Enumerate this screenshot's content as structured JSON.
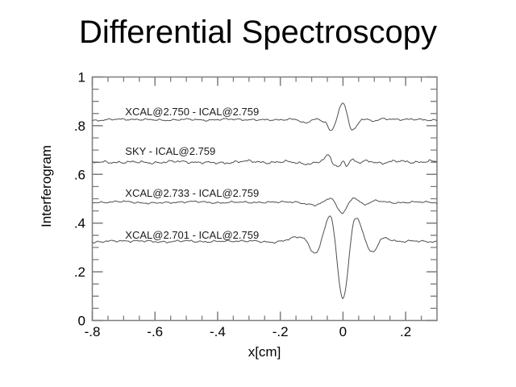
{
  "title": "Differential Spectroscopy",
  "chart_data": {
    "type": "line",
    "title": "Differential Spectroscopy",
    "xlabel": "x[cm]",
    "ylabel": "Interferogram",
    "xlim": [
      -0.8,
      0.3
    ],
    "ylim": [
      0,
      1
    ],
    "grid": false,
    "legend_position": "none",
    "axis_color": "#7d7d7d",
    "line_color": "#4f4f4f",
    "text_color": "#000000",
    "annotation_color": "#1a1a1a",
    "x_ticks": {
      "major": [
        -0.8,
        -0.6,
        -0.4,
        -0.2,
        0,
        0.2
      ],
      "labels": [
        "-.8",
        "-.6",
        "-.4",
        "-.2",
        "0",
        ".2"
      ],
      "minor_step": 0.05
    },
    "y_ticks": {
      "major": [
        0,
        0.2,
        0.4,
        0.6,
        0.8,
        1
      ],
      "labels": [
        "0",
        ".2",
        ".4",
        ".6",
        ".8",
        "1"
      ],
      "minor_step": 0.05
    },
    "series": [
      {
        "id": "xcal2750",
        "name": "XCAL@2.750 - ICAL@2.759",
        "baseline": 0.825,
        "label_x": -0.695,
        "label_y": 0.843,
        "noise_amp": 0.0035,
        "seed": 1,
        "points": [
          [
            -0.8,
            0.823
          ],
          [
            -0.7,
            0.826
          ],
          [
            -0.6,
            0.823
          ],
          [
            -0.5,
            0.826
          ],
          [
            -0.42,
            0.823
          ],
          [
            -0.34,
            0.826
          ],
          [
            -0.26,
            0.824
          ],
          [
            -0.19,
            0.826
          ],
          [
            -0.15,
            0.824
          ],
          [
            -0.122,
            0.809
          ],
          [
            -0.09,
            0.827
          ],
          [
            -0.055,
            0.813
          ],
          [
            -0.036,
            0.779
          ],
          [
            0.0,
            0.892
          ],
          [
            0.028,
            0.786
          ],
          [
            0.06,
            0.827
          ],
          [
            0.095,
            0.818
          ],
          [
            0.13,
            0.828
          ],
          [
            0.19,
            0.824
          ],
          [
            0.25,
            0.826
          ],
          [
            0.3,
            0.824
          ]
        ]
      },
      {
        "id": "sky",
        "name": "SKY - ICAL@2.759",
        "baseline": 0.65,
        "label_x": -0.695,
        "label_y": 0.68,
        "noise_amp": 0.005,
        "seed": 2,
        "points": [
          [
            -0.8,
            0.648
          ],
          [
            -0.7,
            0.652
          ],
          [
            -0.6,
            0.648
          ],
          [
            -0.5,
            0.652
          ],
          [
            -0.4,
            0.648
          ],
          [
            -0.32,
            0.652
          ],
          [
            -0.24,
            0.649
          ],
          [
            -0.17,
            0.652
          ],
          [
            -0.1,
            0.645
          ],
          [
            -0.065,
            0.656
          ],
          [
            -0.046,
            0.676
          ],
          [
            -0.028,
            0.64
          ],
          [
            -0.012,
            0.632
          ],
          [
            0.0,
            0.655
          ],
          [
            0.012,
            0.638
          ],
          [
            0.03,
            0.658
          ],
          [
            0.05,
            0.647
          ],
          [
            0.08,
            0.656
          ],
          [
            0.12,
            0.649
          ],
          [
            0.17,
            0.654
          ],
          [
            0.23,
            0.65
          ],
          [
            0.3,
            0.652
          ]
        ]
      },
      {
        "id": "xcal2733",
        "name": "XCAL@2.733 - ICAL@2.759",
        "baseline": 0.485,
        "label_x": -0.695,
        "label_y": 0.508,
        "noise_amp": 0.0035,
        "seed": 3,
        "points": [
          [
            -0.8,
            0.484
          ],
          [
            -0.7,
            0.487
          ],
          [
            -0.6,
            0.483
          ],
          [
            -0.5,
            0.487
          ],
          [
            -0.4,
            0.484
          ],
          [
            -0.31,
            0.487
          ],
          [
            -0.23,
            0.484
          ],
          [
            -0.16,
            0.487
          ],
          [
            -0.092,
            0.474
          ],
          [
            -0.06,
            0.49
          ],
          [
            -0.038,
            0.504
          ],
          [
            -0.003,
            0.442
          ],
          [
            0.033,
            0.502
          ],
          [
            0.066,
            0.477
          ],
          [
            0.1,
            0.49
          ],
          [
            0.15,
            0.484
          ],
          [
            0.21,
            0.487
          ],
          [
            0.3,
            0.485
          ]
        ]
      },
      {
        "id": "xcal2701",
        "name": "XCAL@2.701 - ICAL@2.759",
        "baseline": 0.325,
        "label_x": -0.695,
        "label_y": 0.336,
        "noise_amp": 0.004,
        "seed": 4,
        "points": [
          [
            -0.8,
            0.323
          ],
          [
            -0.7,
            0.327
          ],
          [
            -0.6,
            0.323
          ],
          [
            -0.5,
            0.327
          ],
          [
            -0.4,
            0.323
          ],
          [
            -0.31,
            0.327
          ],
          [
            -0.24,
            0.323
          ],
          [
            -0.2,
            0.327
          ],
          [
            -0.128,
            0.339
          ],
          [
            -0.084,
            0.279
          ],
          [
            -0.038,
            0.421
          ],
          [
            0.0,
            0.09
          ],
          [
            0.036,
            0.417
          ],
          [
            0.09,
            0.28
          ],
          [
            0.125,
            0.337
          ],
          [
            0.18,
            0.322
          ],
          [
            0.24,
            0.327
          ],
          [
            0.3,
            0.324
          ]
        ]
      }
    ]
  }
}
